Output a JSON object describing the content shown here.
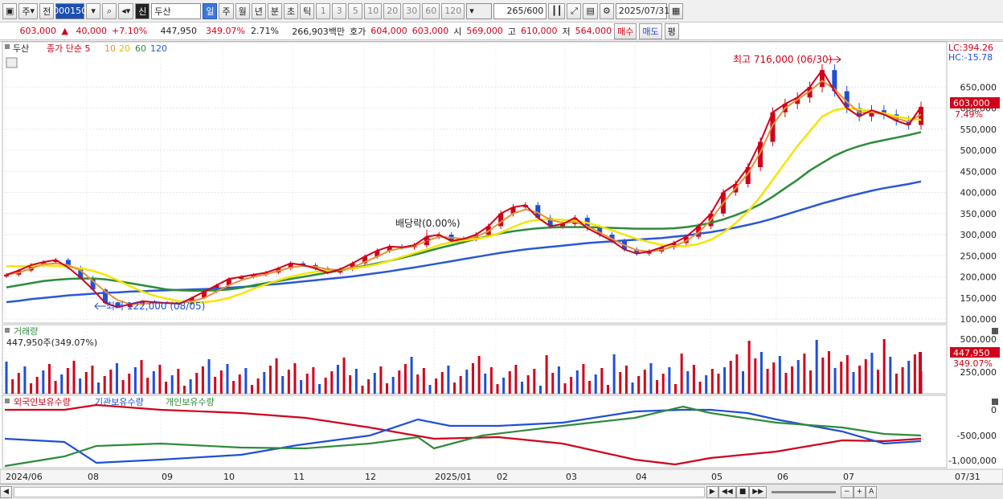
{
  "toolbar": {
    "period_label": "주",
    "prev_label": "전",
    "code": "000150",
    "name_badge": "신",
    "name": "두산",
    "period_tabs": [
      "일",
      "주",
      "월",
      "년",
      "분",
      "초",
      "틱"
    ],
    "interval_buttons": [
      "1",
      "3",
      "5",
      "10",
      "20",
      "30",
      "60",
      "120"
    ],
    "count": "265",
    "count_max": "/600",
    "date": "2025/07/31"
  },
  "quote": {
    "price": "603,000",
    "change": "40,000",
    "change_pct": "+7.10%",
    "volume": "447,950",
    "volume_pct": "349.07%",
    "turnover_pct": "2.71%",
    "amount": "266,903백만",
    "bid_label": "호가",
    "ask": "604,000",
    "bid": "603,000",
    "open_label": "시",
    "open": "569,000",
    "high_label": "고",
    "high": "610,000",
    "low_label": "저",
    "low": "564,000",
    "buy_label": "매수",
    "sell_label": "매도",
    "avg_label": "평"
  },
  "legend": {
    "name": "두산",
    "title": "종가 단순 5",
    "ma": [
      "10",
      "20",
      "60",
      "120"
    ],
    "volume_title": "거래량",
    "volume_value": "447,950주(349.07%)",
    "holdings": [
      "외국인보유수량",
      "기관보유수량",
      "개인보유수량"
    ]
  },
  "annotations": {
    "high": "최고 716,000 (06/30)",
    "low": "최저 122,000 (08/05)",
    "dividend": "배당락(0.00%)"
  },
  "right_labels": {
    "lc": "LC:394.26",
    "hc": "HC:-15.78",
    "price": "603,000",
    "price_pct": "7.49%",
    "volume": "447,950",
    "volume_pct": "349.07%"
  },
  "chart_data": {
    "type": "line",
    "price_ticks": [
      "650,000",
      "600,000",
      "550,000",
      "500,000",
      "450,000",
      "400,000",
      "350,000",
      "300,000",
      "250,000",
      "200,000",
      "150,000",
      "100,000"
    ],
    "volume_ticks": [
      "500,000",
      "250,000"
    ],
    "holding_ticks": [
      "0",
      "-500,000",
      "-1,000,000"
    ],
    "x_labels": [
      "2024/06",
      "08",
      "09",
      "10",
      "11",
      "12",
      "2025/01",
      "02",
      "03",
      "04",
      "05",
      "06",
      "07"
    ],
    "x_right": "07/31",
    "price_min": 100000,
    "price_max": 700000,
    "close": [
      205000,
      215000,
      228000,
      235000,
      240000,
      222000,
      198000,
      170000,
      138000,
      128000,
      135000,
      142000,
      140000,
      138000,
      136000,
      150000,
      165000,
      180000,
      195000,
      200000,
      205000,
      210000,
      220000,
      232000,
      228000,
      220000,
      210000,
      218000,
      232000,
      248000,
      262000,
      272000,
      270000,
      275000,
      295000,
      300000,
      285000,
      290000,
      300000,
      320000,
      350000,
      365000,
      370000,
      340000,
      320000,
      325000,
      340000,
      315000,
      300000,
      285000,
      265000,
      255000,
      260000,
      270000,
      280000,
      295000,
      320000,
      350000,
      400000,
      420000,
      460000,
      520000,
      590000,
      610000,
      625000,
      650000,
      690000,
      640000,
      600000,
      580000,
      595000,
      585000,
      570000,
      560000,
      603000
    ],
    "ma5": [
      205000,
      210000,
      220000,
      230000,
      232000,
      228000,
      215000,
      190000,
      165000,
      145000,
      135000,
      136000,
      138000,
      138000,
      138000,
      142000,
      150000,
      165000,
      180000,
      192000,
      200000,
      206000,
      214000,
      222000,
      226000,
      224000,
      218000,
      216000,
      222000,
      235000,
      248000,
      262000,
      268000,
      273000,
      285000,
      295000,
      293000,
      290000,
      295000,
      308000,
      330000,
      350000,
      360000,
      352000,
      335000,
      328000,
      330000,
      320000,
      305000,
      290000,
      275000,
      263000,
      260000,
      264000,
      272000,
      285000,
      305000,
      335000,
      375000,
      410000,
      445000,
      495000,
      560000,
      600000,
      620000,
      640000,
      665000,
      645000,
      615000,
      590000,
      590000,
      585000,
      575000,
      568000,
      585000
    ],
    "ma20": [
      225000,
      225000,
      226000,
      227000,
      226000,
      224000,
      220000,
      214000,
      205000,
      192000,
      178000,
      165000,
      155000,
      148000,
      142000,
      140000,
      140000,
      143000,
      150000,
      160000,
      172000,
      182000,
      192000,
      200000,
      207000,
      212000,
      215000,
      217000,
      219000,
      224000,
      230000,
      238000,
      247000,
      256000,
      265000,
      275000,
      282000,
      286000,
      290000,
      295000,
      305000,
      318000,
      330000,
      335000,
      337000,
      335000,
      333000,
      328000,
      320000,
      310000,
      300000,
      290000,
      282000,
      276000,
      273000,
      273000,
      278000,
      288000,
      305000,
      327000,
      355000,
      390000,
      430000,
      470000,
      510000,
      545000,
      580000,
      595000,
      600000,
      597000,
      593000,
      588000,
      580000,
      575000,
      572000
    ],
    "ma60": [
      175000,
      180000,
      185000,
      190000,
      193000,
      195000,
      196000,
      196000,
      194000,
      190000,
      185000,
      180000,
      175000,
      170000,
      168000,
      167000,
      167000,
      168000,
      170000,
      174000,
      180000,
      185000,
      190000,
      195000,
      200000,
      205000,
      210000,
      215000,
      220000,
      226000,
      232000,
      238000,
      245000,
      252000,
      260000,
      268000,
      275000,
      282000,
      290000,
      297000,
      303000,
      308000,
      312000,
      315000,
      317000,
      318000,
      318000,
      318000,
      317000,
      316000,
      315000,
      314000,
      314000,
      314000,
      315000,
      318000,
      322000,
      328000,
      336000,
      346000,
      358000,
      372000,
      390000,
      410000,
      430000,
      452000,
      470000,
      487000,
      500000,
      510000,
      518000,
      524000,
      530000,
      536000,
      543000
    ],
    "ma120": [
      140000,
      143000,
      147000,
      150000,
      153000,
      156000,
      158000,
      160000,
      162000,
      163000,
      165000,
      166000,
      167000,
      168000,
      169000,
      170000,
      171000,
      172000,
      174000,
      176000,
      178000,
      181000,
      183000,
      186000,
      189000,
      192000,
      195000,
      198000,
      201000,
      205000,
      209000,
      213000,
      218000,
      222000,
      227000,
      232000,
      237000,
      242000,
      247000,
      252000,
      257000,
      261000,
      265000,
      268000,
      271000,
      274000,
      277000,
      280000,
      282000,
      284000,
      286000,
      288000,
      290000,
      292000,
      295000,
      298000,
      302000,
      306000,
      311000,
      317000,
      323000,
      330000,
      338000,
      347000,
      356000,
      365000,
      374000,
      382000,
      390000,
      397000,
      404000,
      410000,
      415000,
      420000,
      426000
    ]
  }
}
